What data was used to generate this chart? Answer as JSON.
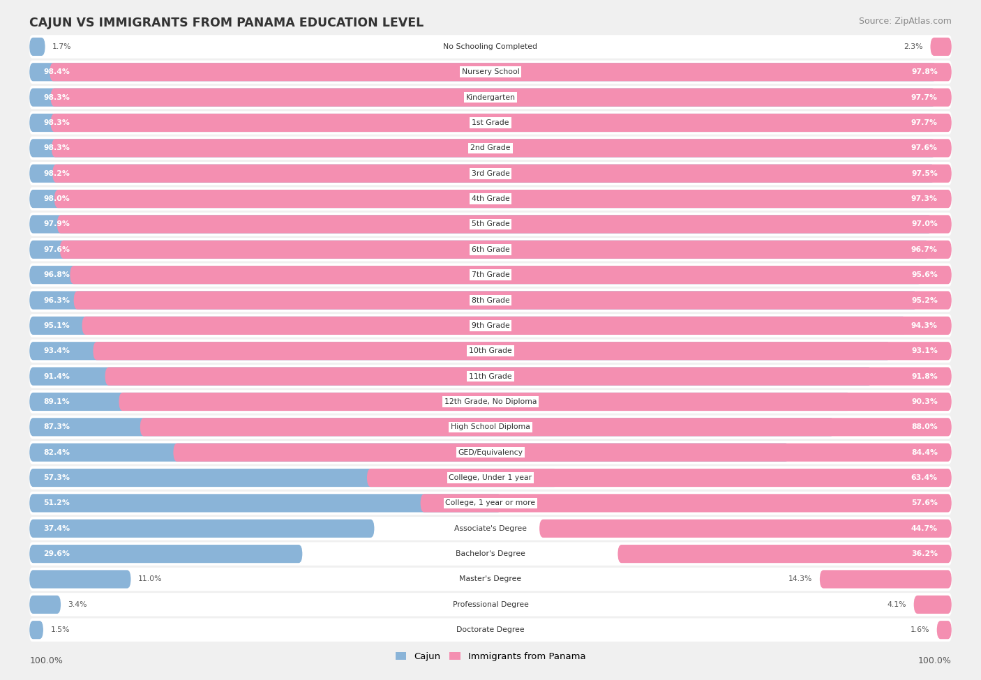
{
  "title": "CAJUN VS IMMIGRANTS FROM PANAMA EDUCATION LEVEL",
  "source": "Source: ZipAtlas.com",
  "categories": [
    "No Schooling Completed",
    "Nursery School",
    "Kindergarten",
    "1st Grade",
    "2nd Grade",
    "3rd Grade",
    "4th Grade",
    "5th Grade",
    "6th Grade",
    "7th Grade",
    "8th Grade",
    "9th Grade",
    "10th Grade",
    "11th Grade",
    "12th Grade, No Diploma",
    "High School Diploma",
    "GED/Equivalency",
    "College, Under 1 year",
    "College, 1 year or more",
    "Associate's Degree",
    "Bachelor's Degree",
    "Master's Degree",
    "Professional Degree",
    "Doctorate Degree"
  ],
  "cajun": [
    1.7,
    98.4,
    98.3,
    98.3,
    98.3,
    98.2,
    98.0,
    97.9,
    97.6,
    96.8,
    96.3,
    95.1,
    93.4,
    91.4,
    89.1,
    87.3,
    82.4,
    57.3,
    51.2,
    37.4,
    29.6,
    11.0,
    3.4,
    1.5
  ],
  "panama": [
    2.3,
    97.8,
    97.7,
    97.7,
    97.6,
    97.5,
    97.3,
    97.0,
    96.7,
    95.6,
    95.2,
    94.3,
    93.1,
    91.8,
    90.3,
    88.0,
    84.4,
    63.4,
    57.6,
    44.7,
    36.2,
    14.3,
    4.1,
    1.6
  ],
  "cajun_color": "#8ab4d8",
  "panama_color": "#f48fb1",
  "background_color": "#f0f0f0",
  "row_bg_color": "#ffffff",
  "title_color": "#333333",
  "source_color": "#888888",
  "value_color_inside": "#ffffff",
  "value_color_outside": "#555555",
  "cat_label_color": "#333333",
  "legend_cajun": "Cajun",
  "legend_panama": "Immigrants from Panama",
  "bar_threshold": 15.0
}
